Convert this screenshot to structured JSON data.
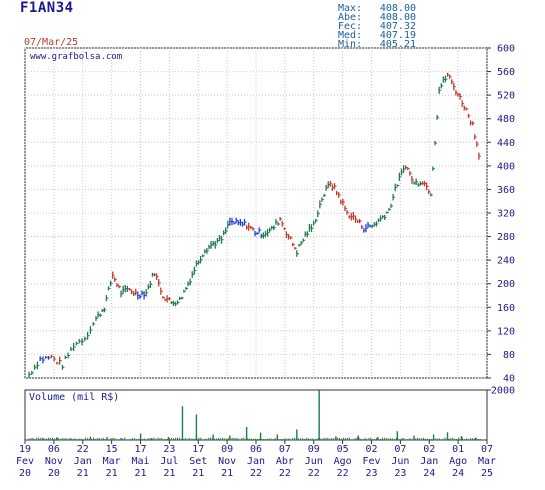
{
  "header": {
    "ticker": "F1AN34",
    "date": "07/Mar/25",
    "stats": [
      {
        "label": "Max:",
        "value": "408.00"
      },
      {
        "label": "Abe:",
        "value": "408.00"
      },
      {
        "label": "Fec:",
        "value": "407.32"
      },
      {
        "label": "Med:",
        "value": "407.19"
      },
      {
        "label": "Min:",
        "value": "405.21"
      }
    ]
  },
  "colors": {
    "up": "#1f7a4a",
    "down": "#c0392b",
    "neutral": "#1f3fd1",
    "grid": "#c8c8c8",
    "axis": "#333333",
    "volume": "#1f7a4a",
    "text": "#1a1a8c"
  },
  "chart_data": [
    {
      "type": "line",
      "watermark": "www.grafbolsa.com",
      "ylim": [
        40,
        600
      ],
      "yticks": [
        40,
        80,
        120,
        160,
        200,
        240,
        280,
        320,
        360,
        400,
        440,
        480,
        520,
        560,
        600
      ],
      "grid": true,
      "x_tick_labels": [
        [
          "19",
          "Fev",
          "20"
        ],
        [
          "06",
          "Nov",
          "20"
        ],
        [
          "22",
          "Jan",
          "21"
        ],
        [
          "15",
          "Mar",
          "21"
        ],
        [
          "17",
          "Mai",
          "21"
        ],
        [
          "23",
          "Jul",
          "21"
        ],
        [
          "17",
          "Set",
          "21"
        ],
        [
          "09",
          "Nov",
          "21"
        ],
        [
          "06",
          "Jan",
          "22"
        ],
        [
          "07",
          "Abr",
          "22"
        ],
        [
          "09",
          "Jun",
          "22"
        ],
        [
          "05",
          "Ago",
          "22"
        ],
        [
          "02",
          "Fev",
          "23"
        ],
        [
          "07",
          "Jun",
          "23"
        ],
        [
          "02",
          "Jan",
          "24"
        ],
        [
          "01",
          "Ago",
          "24"
        ],
        [
          "07",
          "Mar",
          "25"
        ]
      ],
      "price_points": [
        [
          0,
          46
        ],
        [
          4,
          72
        ],
        [
          8,
          75
        ],
        [
          12,
          62
        ],
        [
          16,
          96
        ],
        [
          20,
          108
        ],
        [
          24,
          140
        ],
        [
          27,
          160
        ],
        [
          30,
          215
        ],
        [
          33,
          185
        ],
        [
          36,
          190
        ],
        [
          39,
          182
        ],
        [
          42,
          185
        ],
        [
          45,
          220
        ],
        [
          48,
          180
        ],
        [
          51,
          168
        ],
        [
          54,
          172
        ],
        [
          57,
          200
        ],
        [
          60,
          232
        ],
        [
          63,
          258
        ],
        [
          66,
          268
        ],
        [
          69,
          275
        ],
        [
          72,
          305
        ],
        [
          75,
          302
        ],
        [
          78,
          300
        ],
        [
          81,
          288
        ],
        [
          84,
          285
        ],
        [
          87,
          292
        ],
        [
          90,
          310
        ],
        [
          93,
          280
        ],
        [
          96,
          255
        ],
        [
          99,
          282
        ],
        [
          102,
          300
        ],
        [
          105,
          345
        ],
        [
          108,
          372
        ],
        [
          111,
          350
        ],
        [
          114,
          320
        ],
        [
          117,
          310
        ],
        [
          120,
          295
        ],
        [
          123,
          298
        ],
        [
          126,
          310
        ],
        [
          129,
          325
        ],
        [
          132,
          370
        ],
        [
          135,
          402
        ],
        [
          138,
          370
        ],
        [
          141,
          375
        ],
        [
          144,
          355
        ],
        [
          147,
          530
        ],
        [
          150,
          555
        ],
        [
          153,
          528
        ],
        [
          156,
          502
        ],
        [
          159,
          470
        ],
        [
          162,
          405
        ]
      ]
    },
    {
      "type": "bar",
      "title": "Volume (mil R$)",
      "ylim": [
        0,
        2000
      ],
      "yticks": [
        2000
      ],
      "volumes": [
        [
          5,
          90
        ],
        [
          10,
          110
        ],
        [
          15,
          60
        ],
        [
          22,
          130
        ],
        [
          28,
          120
        ],
        [
          33,
          80
        ],
        [
          40,
          260
        ],
        [
          44,
          80
        ],
        [
          50,
          120
        ],
        [
          55,
          1350
        ],
        [
          60,
          1020
        ],
        [
          66,
          220
        ],
        [
          72,
          180
        ],
        [
          78,
          520
        ],
        [
          83,
          300
        ],
        [
          89,
          220
        ],
        [
          96,
          420
        ],
        [
          104,
          2000
        ],
        [
          110,
          150
        ],
        [
          118,
          180
        ],
        [
          125,
          120
        ],
        [
          132,
          350
        ],
        [
          138,
          180
        ],
        [
          145,
          220
        ],
        [
          150,
          310
        ],
        [
          155,
          160
        ],
        [
          160,
          80
        ]
      ]
    }
  ]
}
